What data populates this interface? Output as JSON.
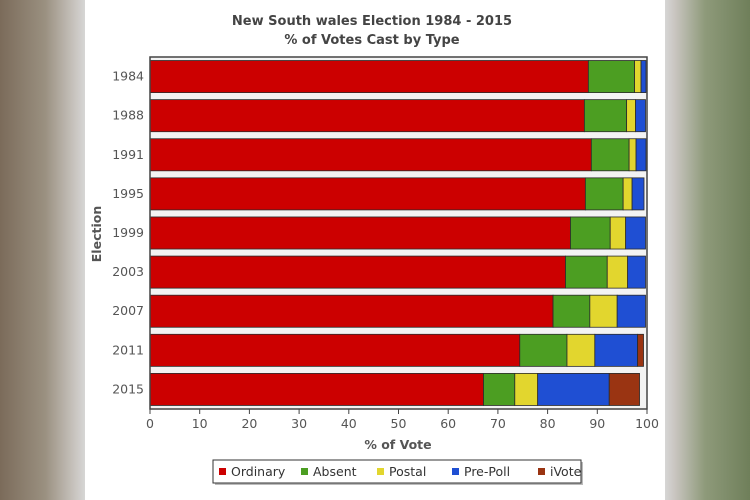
{
  "chart_data": {
    "type": "bar",
    "orientation": "horizontal",
    "stacked": true,
    "title": "New South wales Election 1984 - 2015",
    "subtitle": "% of Votes Cast by Type",
    "xlabel": "% of Vote",
    "ylabel": "Election",
    "xlim": [
      0,
      100
    ],
    "xticks": [
      0,
      10,
      20,
      30,
      40,
      50,
      60,
      70,
      80,
      90,
      100
    ],
    "grid": false,
    "legend_position": "bottom",
    "categories": [
      "1984",
      "1988",
      "1991",
      "1995",
      "1999",
      "2003",
      "2007",
      "2011",
      "2015"
    ],
    "series": [
      {
        "name": "Ordinary",
        "color": "#cc0000",
        "values": [
          88.2,
          87.4,
          88.8,
          87.6,
          84.6,
          83.6,
          81.1,
          74.4,
          67.1
        ]
      },
      {
        "name": "Absent",
        "color": "#4c9e22",
        "values": [
          9.3,
          8.5,
          7.6,
          7.6,
          8.0,
          8.4,
          7.4,
          9.5,
          6.3
        ]
      },
      {
        "name": "Postal",
        "color": "#e2d62e",
        "values": [
          1.3,
          1.8,
          1.4,
          1.8,
          3.1,
          4.1,
          5.5,
          5.6,
          4.6
        ]
      },
      {
        "name": "Pre-Poll",
        "color": "#1f4fd3",
        "values": [
          1.0,
          2.0,
          2.0,
          2.4,
          4.0,
          3.6,
          5.7,
          8.6,
          14.4
        ]
      },
      {
        "name": "iVote",
        "color": "#9a3412",
        "values": [
          0,
          0,
          0,
          0,
          0,
          0,
          0,
          1.2,
          6.1
        ]
      }
    ]
  }
}
